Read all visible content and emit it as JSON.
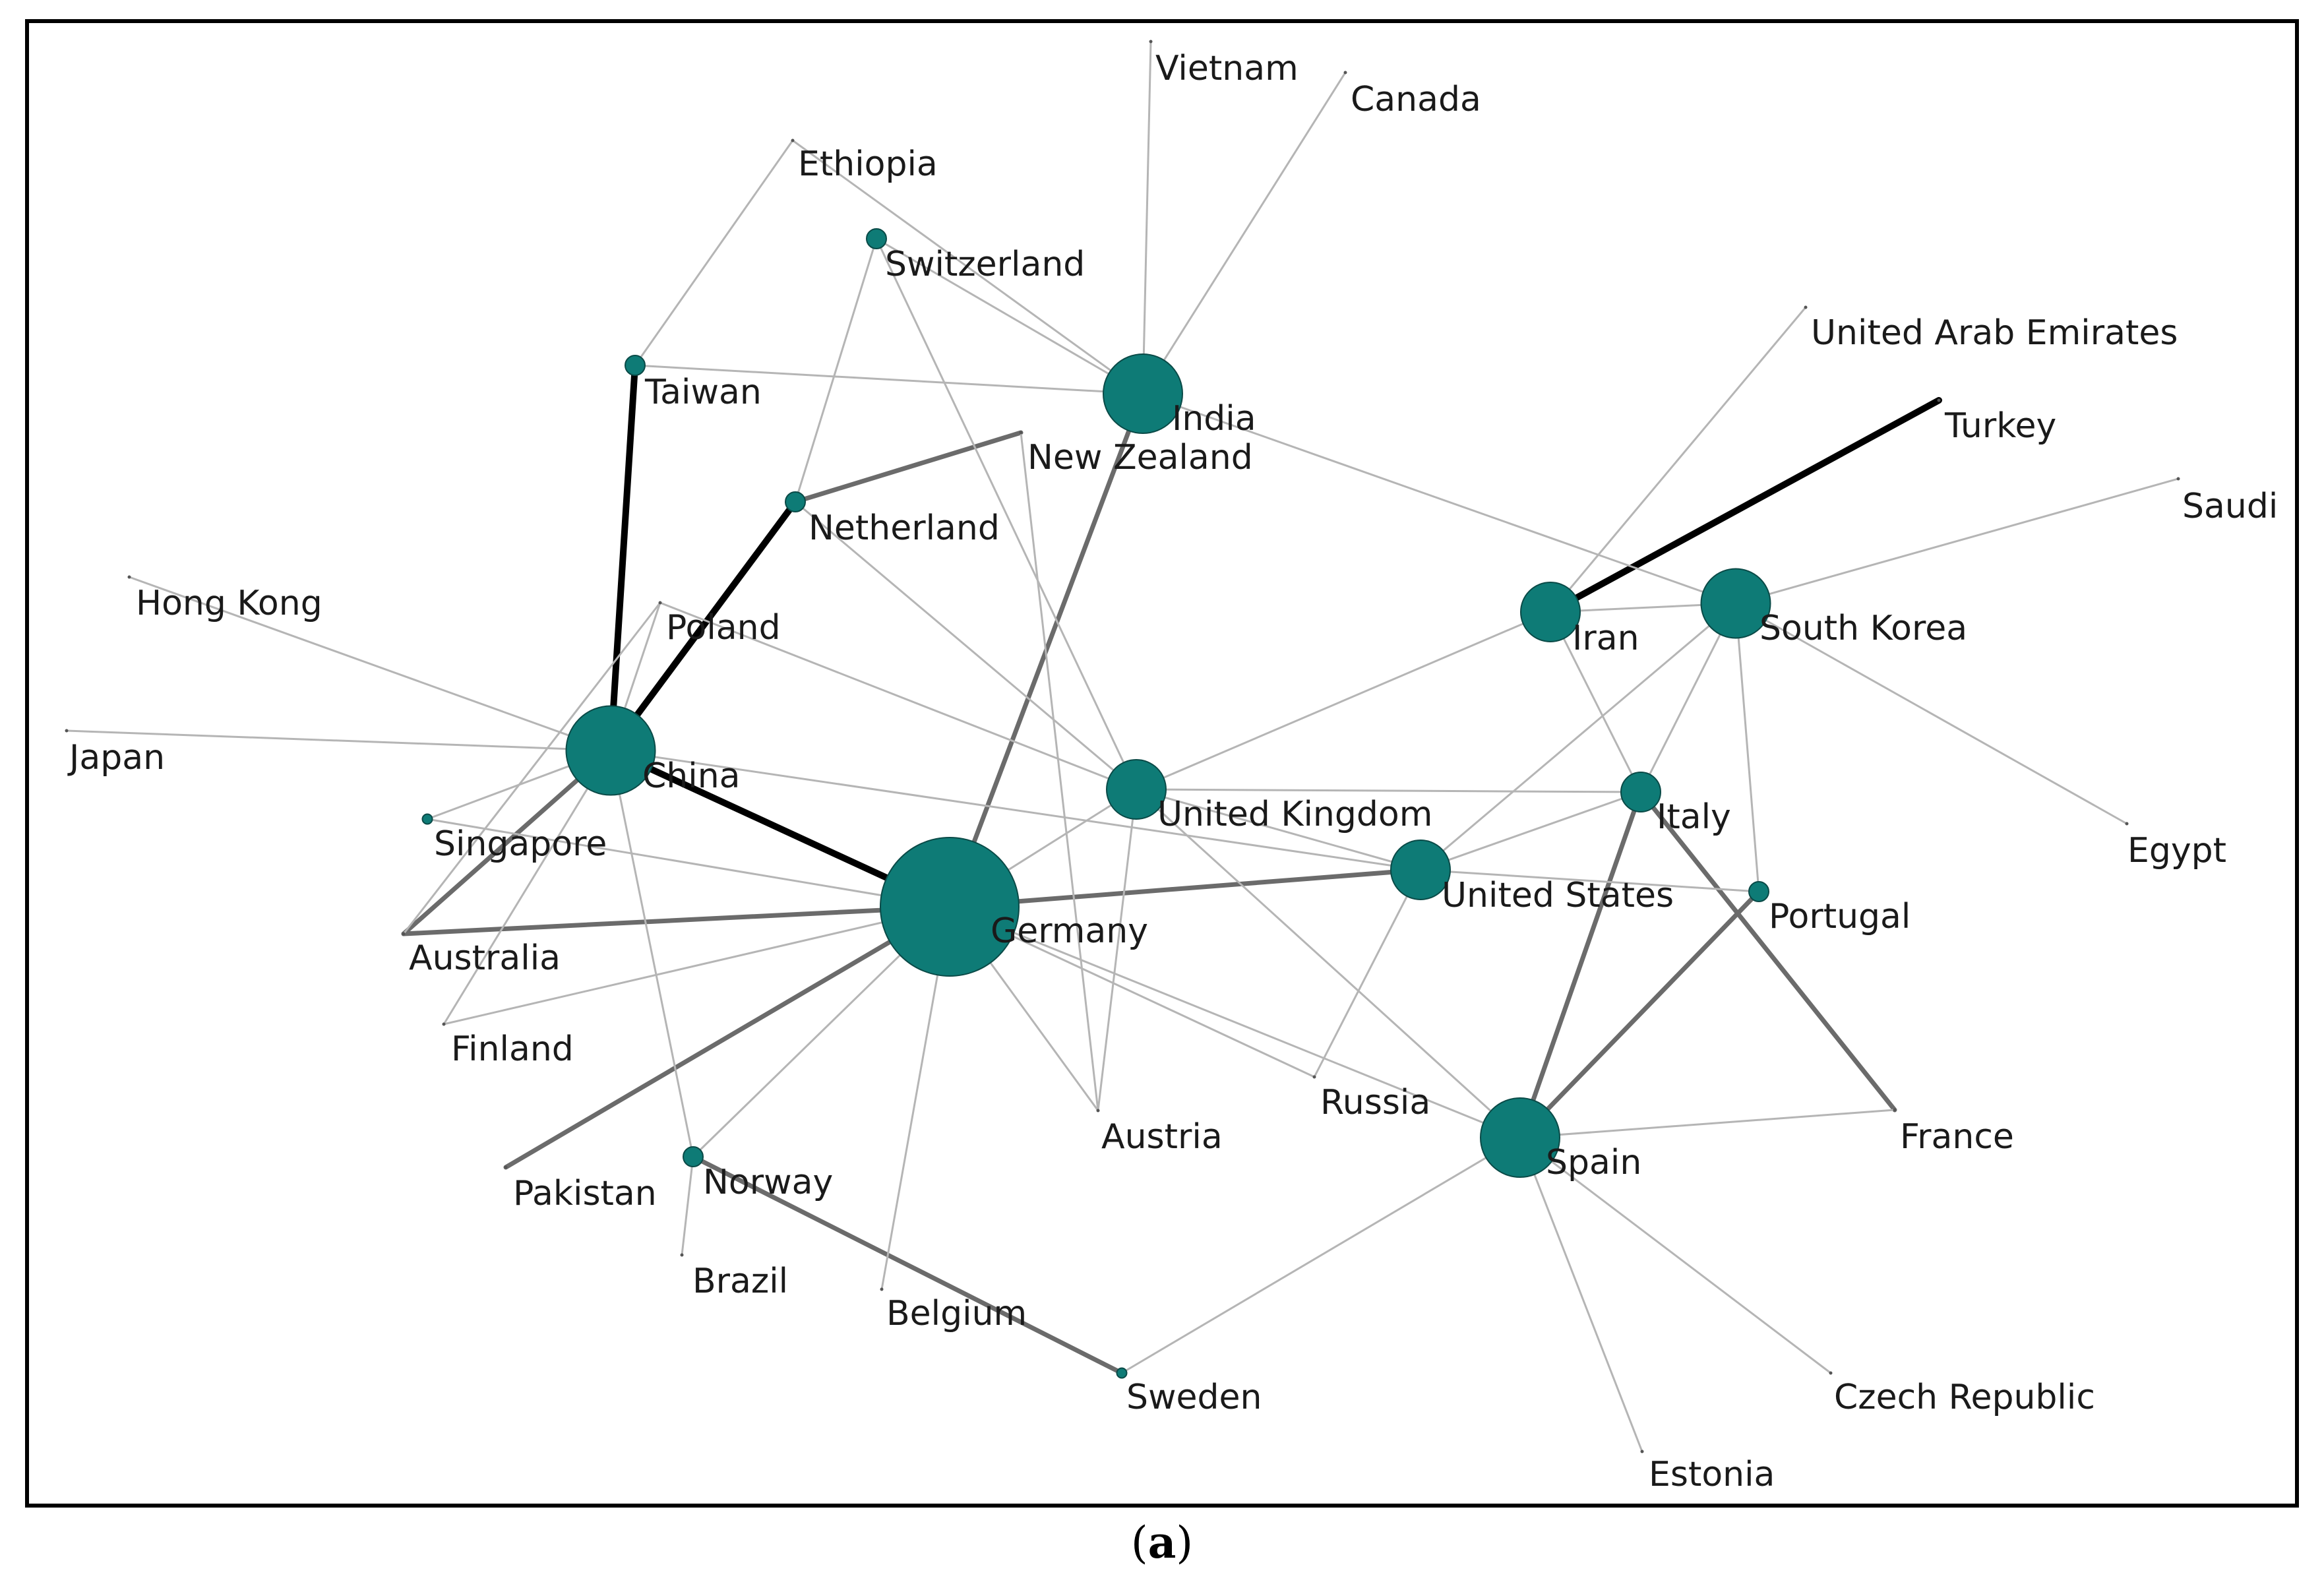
{
  "colors": {
    "node": "#0e7b76",
    "node_stroke": "#0a4a47",
    "weak": "#b5b5b5",
    "medium": "#6b6b6b",
    "strong": "#000000"
  },
  "caption": {
    "open": "(",
    "letter": "a",
    "close": ")"
  },
  "network": {
    "nodes": [
      {
        "id": "Vietnam",
        "label": "Vietnam",
        "size": 0
      },
      {
        "id": "Canada",
        "label": "Canada",
        "size": 0
      },
      {
        "id": "Ethiopia",
        "label": "Ethiopia",
        "size": 0
      },
      {
        "id": "Switzerland",
        "label": "Switzerland",
        "size": 1
      },
      {
        "id": "Taiwan",
        "label": "Taiwan",
        "size": 1
      },
      {
        "id": "India",
        "label": "India",
        "size": 4
      },
      {
        "id": "New Zealand",
        "label": "New Zealand",
        "size": 0
      },
      {
        "id": "Netherland",
        "label": "Netherland",
        "size": 1
      },
      {
        "id": "United Arab Emirates",
        "label": "United Arab Emirates",
        "size": 0
      },
      {
        "id": "Turkey",
        "label": "Turkey",
        "size": 0
      },
      {
        "id": "Saudi",
        "label": "Saudi",
        "size": 0
      },
      {
        "id": "Hong Kong",
        "label": "Hong Kong",
        "size": 0
      },
      {
        "id": "Poland",
        "label": "Poland",
        "size": 0
      },
      {
        "id": "Iran",
        "label": "Iran",
        "size": 3
      },
      {
        "id": "South Korea",
        "label": "South Korea",
        "size": 3.5
      },
      {
        "id": "Japan",
        "label": "Japan",
        "size": 0
      },
      {
        "id": "China",
        "label": "China",
        "size": 4.5
      },
      {
        "id": "United Kingdom",
        "label": "United Kingdom",
        "size": 3
      },
      {
        "id": "Italy",
        "label": "Italy",
        "size": 2
      },
      {
        "id": "Egypt",
        "label": "Egypt",
        "size": 0
      },
      {
        "id": "Singapore",
        "label": "Singapore",
        "size": 0.5
      },
      {
        "id": "United States",
        "label": "United States",
        "size": 3
      },
      {
        "id": "Portugal",
        "label": "Portugal",
        "size": 1
      },
      {
        "id": "Australia",
        "label": "Australia",
        "size": 0
      },
      {
        "id": "Germany",
        "label": "Germany",
        "size": 7
      },
      {
        "id": "Finland",
        "label": "Finland",
        "size": 0
      },
      {
        "id": "Russia",
        "label": "Russia",
        "size": 0
      },
      {
        "id": "Austria",
        "label": "Austria",
        "size": 0
      },
      {
        "id": "France",
        "label": "France",
        "size": 0
      },
      {
        "id": "Spain",
        "label": "Spain",
        "size": 4
      },
      {
        "id": "Pakistan",
        "label": "Pakistan",
        "size": 0
      },
      {
        "id": "Norway",
        "label": "Norway",
        "size": 1
      },
      {
        "id": "Brazil",
        "label": "Brazil",
        "size": 0
      },
      {
        "id": "Belgium",
        "label": "Belgium",
        "size": 0
      },
      {
        "id": "Sweden",
        "label": "Sweden",
        "size": 0.5
      },
      {
        "id": "Czech Republic",
        "label": "Czech Republic",
        "size": 0
      },
      {
        "id": "Estonia",
        "label": "Estonia",
        "size": 0
      }
    ],
    "edges": [
      {
        "from": "Iran",
        "to": "Turkey",
        "weight": 3
      },
      {
        "from": "China",
        "to": "Taiwan",
        "weight": 3
      },
      {
        "from": "China",
        "to": "Netherland",
        "weight": 3
      },
      {
        "from": "China",
        "to": "Germany",
        "weight": 3
      },
      {
        "from": "Netherland",
        "to": "New Zealand",
        "weight": 2
      },
      {
        "from": "Germany",
        "to": "India",
        "weight": 2
      },
      {
        "from": "Germany",
        "to": "United States",
        "weight": 2
      },
      {
        "from": "Germany",
        "to": "Australia",
        "weight": 2
      },
      {
        "from": "Germany",
        "to": "Pakistan",
        "weight": 2
      },
      {
        "from": "China",
        "to": "Australia",
        "weight": 2
      },
      {
        "from": "Norway",
        "to": "Sweden",
        "weight": 2
      },
      {
        "from": "Spain",
        "to": "Italy",
        "weight": 2
      },
      {
        "from": "Spain",
        "to": "Portugal",
        "weight": 2
      },
      {
        "from": "Italy",
        "to": "France",
        "weight": 2
      },
      {
        "from": "India",
        "to": "Vietnam",
        "weight": 1
      },
      {
        "from": "India",
        "to": "Canada",
        "weight": 1
      },
      {
        "from": "India",
        "to": "Ethiopia",
        "weight": 1
      },
      {
        "from": "India",
        "to": "Switzerland",
        "weight": 1
      },
      {
        "from": "India",
        "to": "Taiwan",
        "weight": 1
      },
      {
        "from": "India",
        "to": "South Korea",
        "weight": 1
      },
      {
        "from": "Ethiopia",
        "to": "Taiwan",
        "weight": 1
      },
      {
        "from": "Switzerland",
        "to": "Netherland",
        "weight": 1
      },
      {
        "from": "Switzerland",
        "to": "United Kingdom",
        "weight": 1
      },
      {
        "from": "Hong Kong",
        "to": "China",
        "weight": 1
      },
      {
        "from": "Japan",
        "to": "China",
        "weight": 1
      },
      {
        "from": "China",
        "to": "Poland",
        "weight": 1
      },
      {
        "from": "China",
        "to": "Singapore",
        "weight": 1
      },
      {
        "from": "China",
        "to": "Finland",
        "weight": 1
      },
      {
        "from": "China",
        "to": "Norway",
        "weight": 1
      },
      {
        "from": "China",
        "to": "United States",
        "weight": 1
      },
      {
        "from": "Poland",
        "to": "Australia",
        "weight": 1
      },
      {
        "from": "Poland",
        "to": "United Kingdom",
        "weight": 1
      },
      {
        "from": "Singapore",
        "to": "Germany",
        "weight": 1
      },
      {
        "from": "Finland",
        "to": "Germany",
        "weight": 1
      },
      {
        "from": "Netherland",
        "to": "United Kingdom",
        "weight": 1
      },
      {
        "from": "Germany",
        "to": "United Kingdom",
        "weight": 1
      },
      {
        "from": "Germany",
        "to": "Norway",
        "weight": 1
      },
      {
        "from": "Germany",
        "to": "Belgium",
        "weight": 1
      },
      {
        "from": "Germany",
        "to": "Austria",
        "weight": 1
      },
      {
        "from": "Germany",
        "to": "Russia",
        "weight": 1
      },
      {
        "from": "Germany",
        "to": "Spain",
        "weight": 1
      },
      {
        "from": "United Kingdom",
        "to": "Italy",
        "weight": 1
      },
      {
        "from": "United Kingdom",
        "to": "Iran",
        "weight": 1
      },
      {
        "from": "United Kingdom",
        "to": "Spain",
        "weight": 1
      },
      {
        "from": "United Kingdom",
        "to": "Austria",
        "weight": 1
      },
      {
        "from": "United Kingdom",
        "to": "United States",
        "weight": 1
      },
      {
        "from": "United States",
        "to": "Italy",
        "weight": 1
      },
      {
        "from": "United States",
        "to": "South Korea",
        "weight": 1
      },
      {
        "from": "United States",
        "to": "Portugal",
        "weight": 1
      },
      {
        "from": "United States",
        "to": "Russia",
        "weight": 1
      },
      {
        "from": "Iran",
        "to": "South Korea",
        "weight": 1
      },
      {
        "from": "Iran",
        "to": "United Arab Emirates",
        "weight": 1
      },
      {
        "from": "Iran",
        "to": "Italy",
        "weight": 1
      },
      {
        "from": "South Korea",
        "to": "Saudi",
        "weight": 1
      },
      {
        "from": "South Korea",
        "to": "Egypt",
        "weight": 1
      },
      {
        "from": "South Korea",
        "to": "Italy",
        "weight": 1
      },
      {
        "from": "South Korea",
        "to": "Portugal",
        "weight": 1
      },
      {
        "from": "Spain",
        "to": "France",
        "weight": 1
      },
      {
        "from": "Spain",
        "to": "Sweden",
        "weight": 1
      },
      {
        "from": "Spain",
        "to": "Czech Republic",
        "weight": 1
      },
      {
        "from": "Spain",
        "to": "Estonia",
        "weight": 1
      },
      {
        "from": "New Zealand",
        "to": "Austria",
        "weight": 1
      },
      {
        "from": "Norway",
        "to": "Brazil",
        "weight": 1
      }
    ]
  }
}
